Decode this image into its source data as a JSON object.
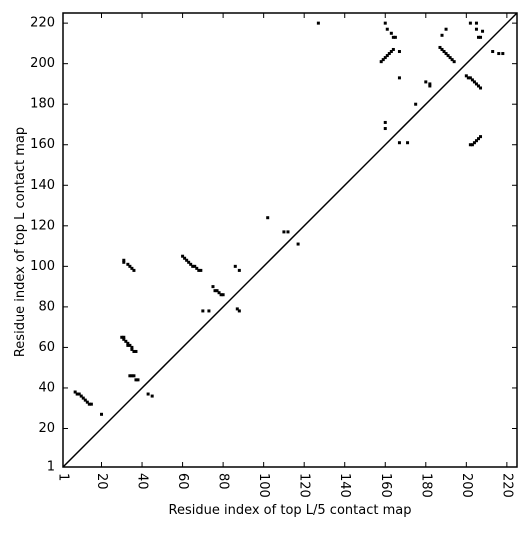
{
  "chart_data": {
    "type": "scatter",
    "x_label": "Residue index of top L/5 contact map",
    "y_label": "Residue index of top L contact map",
    "color": "#000000",
    "diagonal": true,
    "xlim": [
      1,
      225
    ],
    "ylim": [
      1,
      225
    ],
    "xticks": [
      1,
      20,
      40,
      60,
      80,
      100,
      120,
      140,
      160,
      180,
      200,
      220
    ],
    "yticks": [
      1,
      20,
      40,
      60,
      80,
      100,
      120,
      140,
      160,
      180,
      200,
      220
    ],
    "x": [
      7,
      8,
      9,
      10,
      11,
      12,
      13,
      14,
      15,
      20,
      30,
      31,
      31,
      32,
      33,
      33,
      34,
      35,
      35,
      36,
      37,
      31,
      31,
      33,
      34,
      35,
      36,
      34,
      35,
      36,
      37,
      38,
      43,
      45,
      60,
      61,
      62,
      63,
      64,
      65,
      66,
      67,
      68,
      69,
      70,
      73,
      75,
      76,
      77,
      78,
      79,
      80,
      86,
      88,
      87,
      88,
      102,
      110,
      112,
      117,
      127,
      160,
      161,
      163,
      164,
      165,
      158,
      159,
      160,
      161,
      162,
      163,
      164,
      167,
      167,
      160,
      160,
      167,
      171,
      175,
      180,
      182,
      182,
      188,
      190,
      187,
      188,
      189,
      190,
      191,
      192,
      193,
      194,
      200,
      201,
      202,
      203,
      204,
      205,
      206,
      207,
      202,
      205,
      205,
      206,
      207,
      208,
      202,
      203,
      204,
      205,
      206,
      207,
      213,
      216,
      218
    ],
    "y": [
      38,
      37,
      37,
      36,
      35,
      34,
      33,
      32,
      32,
      27,
      65,
      65,
      64,
      63,
      62,
      61,
      61,
      60,
      59,
      58,
      58,
      103,
      102,
      101,
      100,
      99,
      98,
      46,
      46,
      46,
      44,
      44,
      37,
      36,
      105,
      104,
      103,
      102,
      101,
      100,
      100,
      99,
      98,
      98,
      78,
      78,
      90,
      88,
      88,
      87,
      86,
      86,
      100,
      98,
      79,
      78,
      124,
      117,
      117,
      111,
      220,
      220,
      217,
      215,
      213,
      213,
      201,
      202,
      203,
      204,
      205,
      206,
      207,
      206,
      193,
      171,
      168,
      161,
      161,
      180,
      191,
      190,
      189,
      214,
      217,
      208,
      207,
      206,
      205,
      204,
      203,
      202,
      201,
      194,
      193,
      193,
      192,
      191,
      190,
      189,
      188,
      220,
      220,
      217,
      213,
      213,
      216,
      160,
      160,
      161,
      162,
      163,
      164,
      206,
      205,
      205
    ]
  }
}
